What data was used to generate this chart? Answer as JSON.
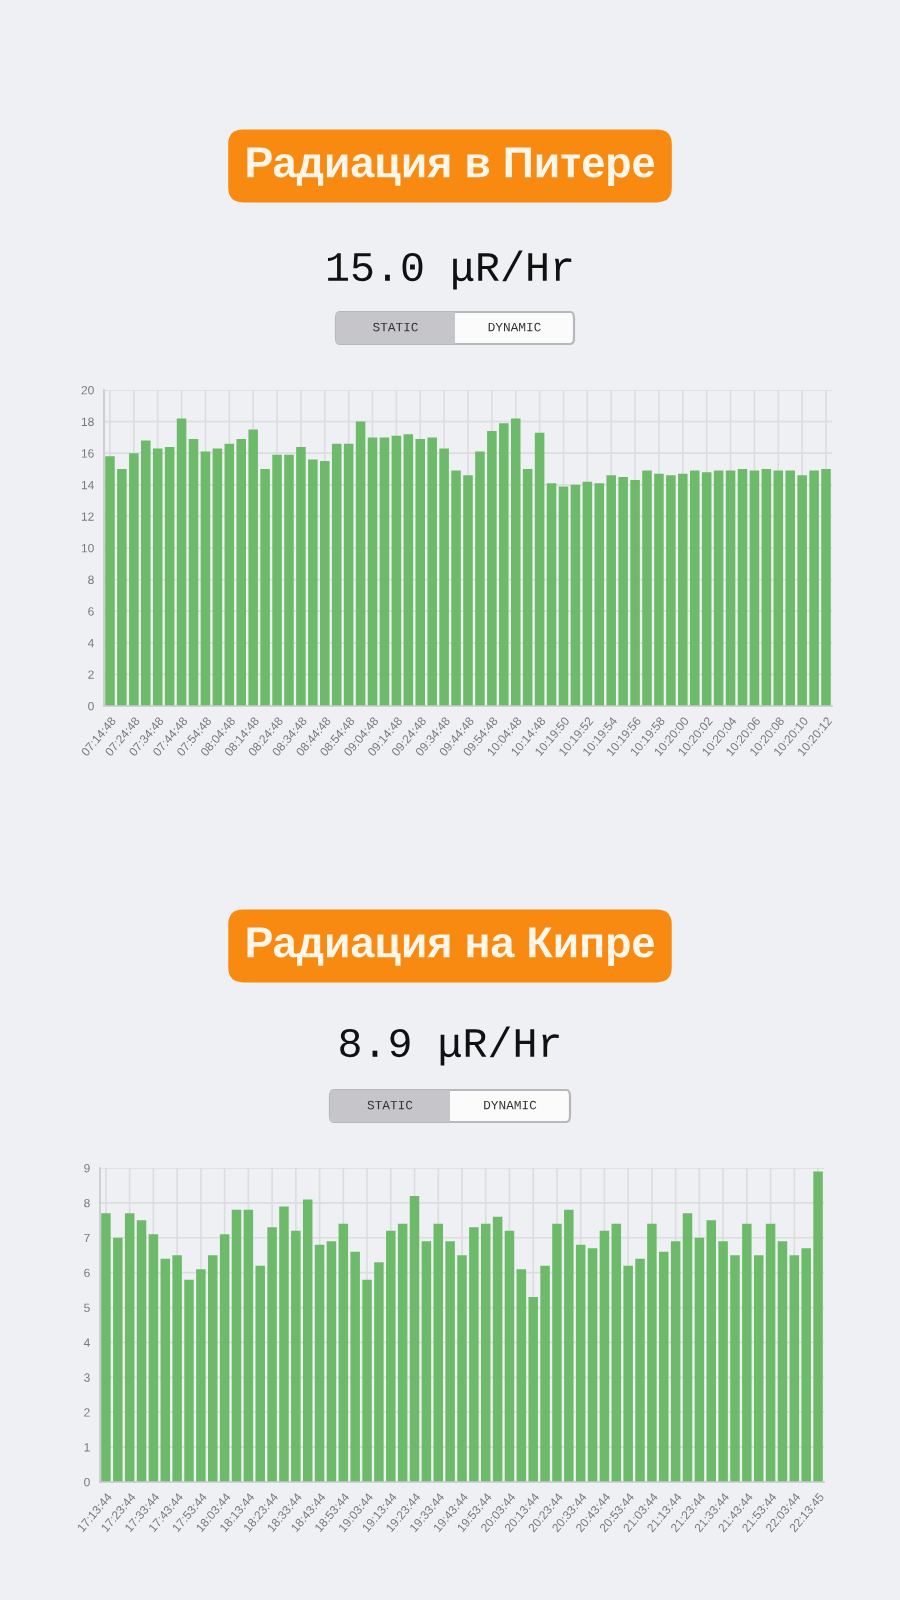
{
  "chart_data": [
    {
      "type": "bar",
      "title": "Радиация в Питере",
      "subtitle": "15.0 μR/Hr",
      "annotations": [
        "STATIC",
        "DYNAMIC"
      ],
      "categories": [
        "07:14:48",
        null,
        "07:24:48",
        null,
        "07:34:48",
        null,
        "07:44:48",
        null,
        "07:54:48",
        null,
        "08:04:48",
        null,
        "08:14:48",
        null,
        "08:24:48",
        null,
        "08:34:48",
        null,
        "08:44:48",
        null,
        "08:54:48",
        null,
        "09:04:48",
        null,
        "09:14:48",
        null,
        "09:24:48",
        null,
        "09:34:48",
        null,
        "09:44:48",
        null,
        "09:54:48",
        null,
        "10:04:48",
        null,
        "10:14:48",
        null,
        "10:19:50",
        null,
        "10:19:52",
        null,
        "10:19:54",
        null,
        "10:19:56",
        null,
        "10:19:58",
        null,
        "10:20:00",
        null,
        "10:20:02",
        null,
        "10:20:04",
        null,
        "10:20:06",
        null,
        "10:20:08",
        null,
        "10:20:10",
        null,
        "10:20:12"
      ],
      "values": [
        15.8,
        15.0,
        16.0,
        16.8,
        16.3,
        16.4,
        18.2,
        16.9,
        16.1,
        16.3,
        16.6,
        16.9,
        17.5,
        15.0,
        15.9,
        15.9,
        16.4,
        15.6,
        15.5,
        16.6,
        16.6,
        18.0,
        17.0,
        17.0,
        17.1,
        17.2,
        16.9,
        17.0,
        16.3,
        14.9,
        14.6,
        16.1,
        17.4,
        17.9,
        18.2,
        15.0,
        17.3,
        14.1,
        13.9,
        14.0,
        14.2,
        14.1,
        14.6,
        14.5,
        14.3,
        14.9,
        14.7,
        14.6,
        14.7,
        14.9,
        14.8,
        14.9,
        14.9,
        15.0,
        14.9,
        15.0,
        14.9,
        14.9,
        14.6,
        14.9,
        15.0
      ],
      "color": "#6dbb6a",
      "ylim": [
        0,
        20
      ],
      "yticks": [
        0,
        2,
        4,
        6,
        8,
        10,
        12,
        14,
        16,
        18,
        20
      ],
      "grid": true
    },
    {
      "type": "bar",
      "title": "Радиация на Кипре",
      "subtitle": "8.9 μR/Hr",
      "annotations": [
        "STATIC",
        "DYNAMIC"
      ],
      "categories": [
        "17:13:44",
        null,
        "17:23:44",
        null,
        "17:33:44",
        null,
        "17:43:44",
        null,
        "17:53:44",
        null,
        "18:03:44",
        null,
        "18:13:44",
        null,
        "18:23:44",
        null,
        "18:33:44",
        null,
        "18:43:44",
        null,
        "18:53:44",
        null,
        "19:03:44",
        null,
        "19:13:44",
        null,
        "19:23:44",
        null,
        "19:33:44",
        null,
        "19:43:44",
        null,
        "19:53:44",
        null,
        "20:03:44",
        null,
        "20:13:44",
        null,
        "20:23:44",
        null,
        "20:33:44",
        null,
        "20:43:44",
        null,
        "20:53:44",
        null,
        "21:03:44",
        null,
        "21:13:44",
        null,
        "21:23:44",
        null,
        "21:33:44",
        null,
        "21:43:44",
        null,
        "21:53:44",
        null,
        "22:03:44",
        null,
        "22:13:45"
      ],
      "values": [
        7.7,
        7.0,
        7.7,
        7.5,
        7.1,
        6.4,
        6.5,
        5.8,
        6.1,
        6.5,
        7.1,
        7.8,
        7.8,
        6.2,
        7.3,
        7.9,
        7.2,
        8.1,
        6.8,
        6.9,
        7.4,
        6.6,
        5.8,
        6.3,
        7.2,
        7.4,
        8.2,
        6.9,
        7.4,
        6.9,
        6.5,
        7.3,
        7.4,
        7.6,
        7.2,
        6.1,
        5.3,
        6.2,
        7.4,
        7.8,
        6.8,
        6.7,
        7.2,
        7.4,
        6.2,
        6.4,
        7.4,
        6.6,
        6.9,
        7.7,
        7.0,
        7.5,
        6.9,
        6.5,
        7.4,
        6.5,
        7.4,
        6.9,
        6.5,
        6.7,
        8.9
      ],
      "color": "#6dbb6a",
      "ylim": [
        0,
        9
      ],
      "yticks": [
        0,
        1,
        2,
        3,
        4,
        5,
        6,
        7,
        8,
        9
      ],
      "grid": true
    }
  ]
}
